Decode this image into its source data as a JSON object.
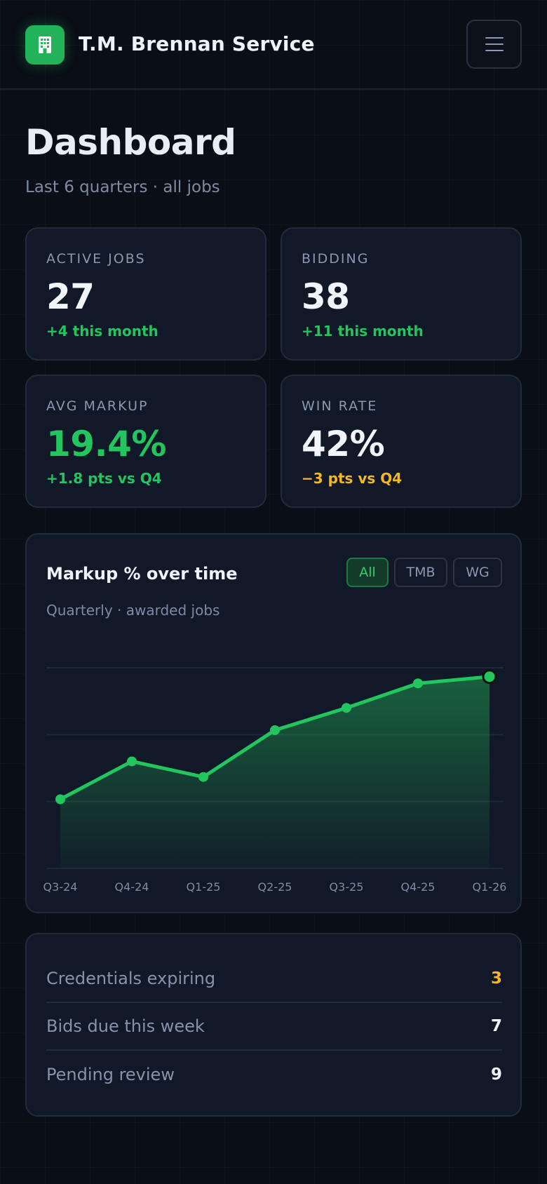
{
  "header": {
    "brand": "T.M. Brennan Service",
    "logo_icon": "building-icon",
    "menu_icon": "hamburger-icon"
  },
  "page": {
    "title": "Dashboard",
    "subtitle": "Last 6 quarters · all jobs"
  },
  "stats": [
    {
      "label": "ACTIVE JOBS",
      "value": "27",
      "delta": "+4 this month",
      "value_color": "#f1f4fa",
      "delta_color": "#22c55e"
    },
    {
      "label": "BIDDING",
      "value": "38",
      "delta": "+11 this month",
      "value_color": "#f1f4fa",
      "delta_color": "#22c55e"
    },
    {
      "label": "AVG MARKUP",
      "value": "19.4%",
      "delta": "+1.8 pts vs Q4",
      "value_color": "#22c55e",
      "delta_color": "#22c55e"
    },
    {
      "label": "WIN RATE",
      "value": "42%",
      "delta": "−3 pts vs Q4",
      "value_color": "#f1f4fa",
      "delta_color": "#f5b820"
    }
  ],
  "chart_card": {
    "title": "Markup % over time",
    "subtitle": "Quarterly · awarded jobs",
    "filters": [
      {
        "label": "All",
        "active": true
      },
      {
        "label": "TMB",
        "active": false
      },
      {
        "label": "WG",
        "active": false
      }
    ]
  },
  "chart_data": {
    "type": "line",
    "title": "Markup % over time",
    "subtitle": "Quarterly · awarded jobs",
    "categories": [
      "Q3-24",
      "Q4-24",
      "Q1-25",
      "Q2-25",
      "Q3-25",
      "Q4-25",
      "Q1-26"
    ],
    "series": [
      {
        "values": [
          15.1,
          16.8,
          16.1,
          18.2,
          19.2,
          20.3,
          20.6
        ]
      }
    ],
    "ylim": [
      12,
      21
    ],
    "grid": true,
    "area_fill": true,
    "line_color": "#22c55e"
  },
  "summary": [
    {
      "label": "Credentials expiring",
      "value": "3",
      "color": "#f5b820"
    },
    {
      "label": "Bids due this week",
      "value": "7",
      "color": "#f1f4fa"
    },
    {
      "label": "Pending review",
      "value": "9",
      "color": "#f1f4fa"
    }
  ]
}
